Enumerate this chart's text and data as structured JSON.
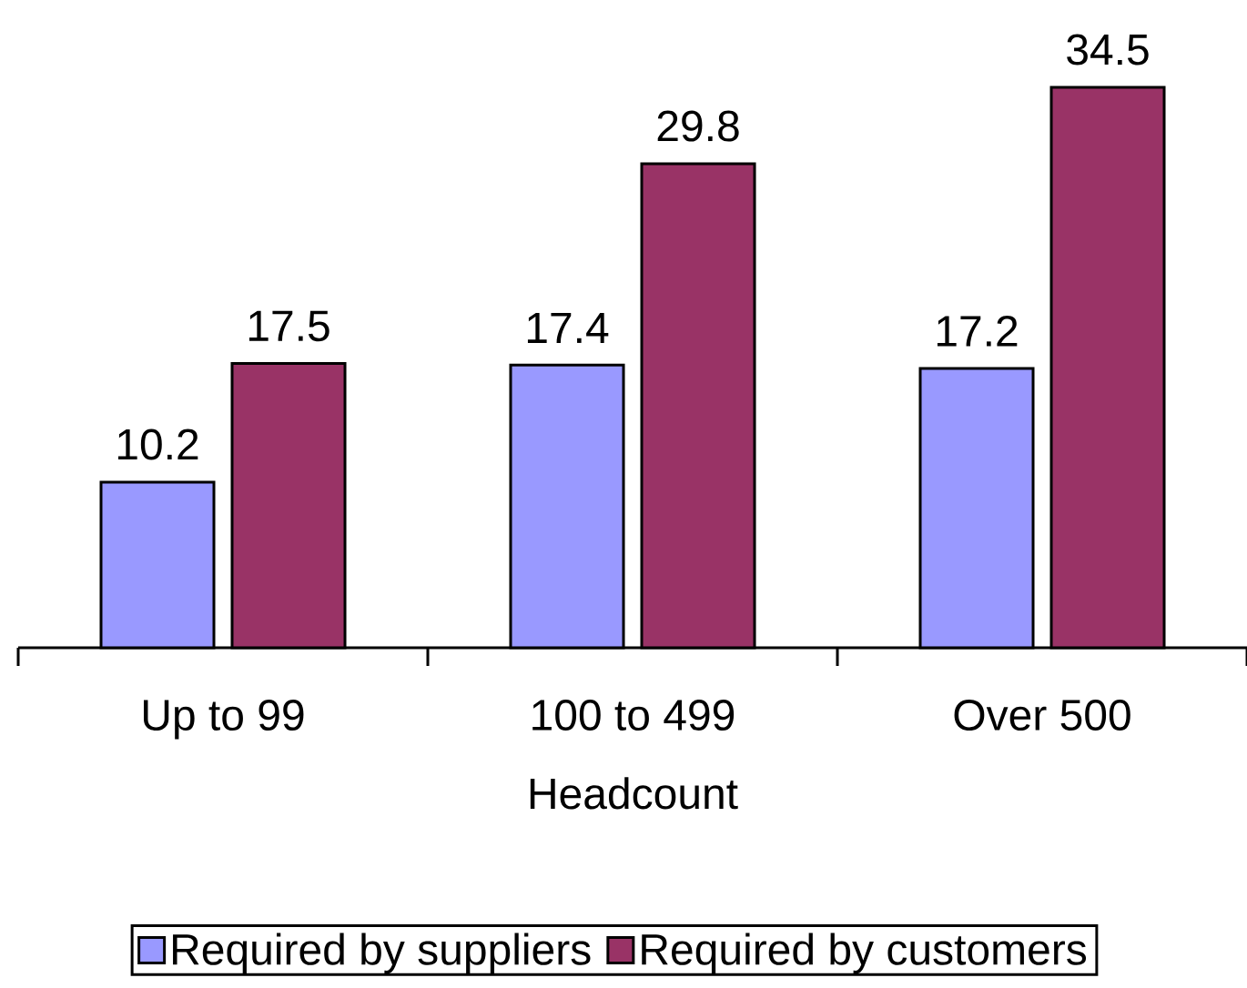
{
  "chart_data": {
    "type": "bar",
    "xlabel": "Headcount",
    "categories": [
      "Up to 99",
      "100 to 499",
      "Over 500"
    ],
    "series": [
      {
        "name": "Required by suppliers",
        "color": "#9999ff",
        "values": [
          10.2,
          17.4,
          17.2
        ]
      },
      {
        "name": "Required by customers",
        "color": "#993366",
        "values": [
          17.5,
          29.8,
          34.5
        ]
      }
    ],
    "data_labels": true,
    "legend": "bottom"
  }
}
